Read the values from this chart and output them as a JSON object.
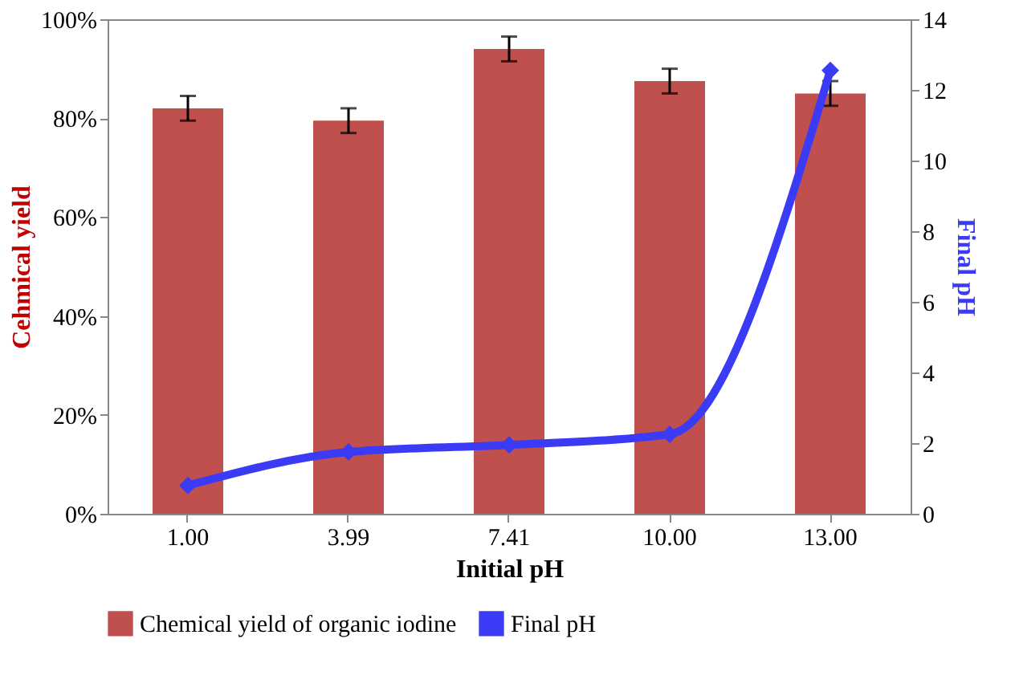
{
  "chart_data": {
    "type": "bar",
    "xlabel": "Initial pH",
    "ylabel": "Cehmical yield",
    "y2label": "Final pH",
    "categories": [
      "1.00",
      "3.99",
      "7.41",
      "10.00",
      "13.00"
    ],
    "series": [
      {
        "name": "Chemical yield of organic iodine",
        "color": "#c0504d",
        "values": [
          82,
          79.5,
          94,
          87.5,
          85
        ],
        "errors": [
          2.5,
          2.5,
          2.5,
          2.5,
          2.5
        ]
      },
      {
        "name": "Final pH",
        "type": "line",
        "axis": "y2",
        "color": "#3b3bf5",
        "marker": "diamond",
        "values": [
          0.8,
          1.75,
          1.95,
          2.25,
          12.55
        ]
      }
    ],
    "ylim": [
      0,
      100
    ],
    "yticks": [
      {
        "value": 0,
        "label": "0%"
      },
      {
        "value": 20,
        "label": "20%"
      },
      {
        "value": 40,
        "label": "40%"
      },
      {
        "value": 60,
        "label": "60%"
      },
      {
        "value": 80,
        "label": "80%"
      },
      {
        "value": 100,
        "label": "100%"
      }
    ],
    "y2lim": [
      0,
      14
    ],
    "y2ticks": [
      0,
      2,
      4,
      6,
      8,
      10,
      12,
      14
    ],
    "grid": false,
    "legend": "bottom"
  }
}
